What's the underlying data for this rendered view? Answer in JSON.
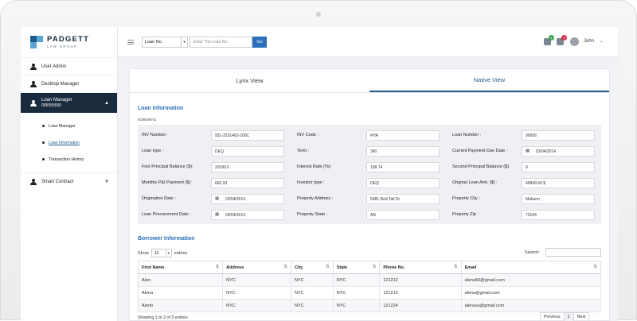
{
  "logo": {
    "name": "PADGETT",
    "tagline": "LAW GROUP"
  },
  "sidebar": {
    "items": [
      {
        "label": "User Admin"
      },
      {
        "label": "Desktop Manager"
      },
      {
        "label": "Loan Manager",
        "sub": "005555555"
      },
      {
        "label": "Smart Contract"
      }
    ],
    "sub_items": [
      {
        "label": "Loan Manager"
      },
      {
        "label": "Loan Information"
      },
      {
        "label": "Transaction History"
      }
    ]
  },
  "topbar": {
    "select_value": "Loan No.",
    "input_placeholder": "Enter The Loan No.",
    "go_label": "Go",
    "notif1_count": "4",
    "notif2_count": "3",
    "username": "John",
    "colors": {
      "accent": "#2a6fba",
      "sidebar_active": "#1b2b3e",
      "notif_green": "#3aa655",
      "notif_red": "#d9304a"
    }
  },
  "tabs": [
    "Lynx View",
    "Native View"
  ],
  "loan_info": {
    "title": "Loan Information",
    "loan_id": "0038546701",
    "rows": [
      [
        {
          "label": "INV Number:",
          "value": "931-2531463-200C"
        },
        {
          "label": "INV Code :",
          "value": "FHA"
        },
        {
          "label": "Loan Number :",
          "value": "00006"
        }
      ],
      [
        {
          "label": "Loan type :",
          "value": "DEQ"
        },
        {
          "label": "Term :",
          "value": "360"
        },
        {
          "label": "Current Payment Due Date :",
          "value": "03/04/2014",
          "cal": true
        }
      ],
      [
        {
          "label": "First Principal Balance ($):",
          "value": "20290.6"
        },
        {
          "label": "Interest Rate (%):",
          "value": "198.74"
        },
        {
          "label": "Second Principal Balance ($):",
          "value": "0"
        }
      ],
      [
        {
          "label": "Monthly P&I Payment ($):",
          "value": "682.93"
        },
        {
          "label": "Investor type :",
          "value": "DEQ"
        },
        {
          "label": "Original Loan Amt. ($) :",
          "value": "49849.60 $"
        }
      ],
      [
        {
          "label": "Origination Date :",
          "value": "03/04/2014",
          "cal": true
        },
        {
          "label": "Property Address :",
          "value": "5081 Red Tail Dr"
        },
        {
          "label": "Property City :",
          "value": "Malvern"
        }
      ],
      [
        {
          "label": "Loan Procurement Date :",
          "value": "03/04/2014",
          "cal": true
        },
        {
          "label": "Property State :",
          "value": "AR"
        },
        {
          "label": "Property Zip :",
          "value": "72104"
        }
      ]
    ]
  },
  "borrower": {
    "title": "Borrower Information",
    "show_label": "Show",
    "entries_value": "10",
    "entries_label": "entries",
    "search_label": "Search:",
    "columns": [
      "First Name",
      "Address",
      "City",
      "State",
      "Phone No.",
      "Email"
    ],
    "rows": [
      [
        "Alen",
        "NYC",
        "NYC",
        "NYC",
        "121212",
        "alena56@gmail.com"
      ],
      [
        "Alena",
        "NYC",
        "NYC",
        "NYC",
        "121213",
        "alena@gmail.com"
      ],
      [
        "Alenb",
        "NYC",
        "NYC",
        "NYC",
        "121224",
        "alenssa@gmail.com"
      ]
    ],
    "footer_info": "Showing 1 to 3 of 3 entries",
    "pager": [
      "Previous",
      "1",
      "Next"
    ]
  }
}
